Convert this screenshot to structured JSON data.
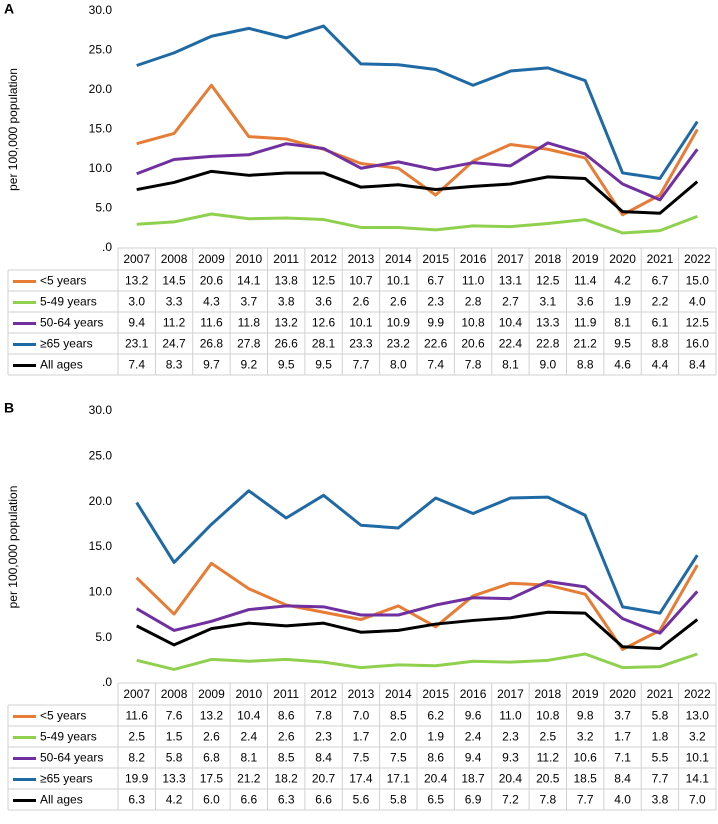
{
  "chart_data": [
    {
      "type": "line",
      "label": "A",
      "ylabel": "per 100,000 population",
      "grid": false,
      "ylim": [
        0,
        30
      ],
      "yticks": [
        {
          "value": 0,
          "label": ".0"
        },
        {
          "value": 5,
          "label": "5.0"
        },
        {
          "value": 10,
          "label": "10.0"
        },
        {
          "value": 15,
          "label": "15.0"
        },
        {
          "value": 20,
          "label": "20.0"
        },
        {
          "value": 25,
          "label": "25.0"
        },
        {
          "value": 30,
          "label": "30.0"
        }
      ],
      "categories": [
        "2007",
        "2008",
        "2009",
        "2010",
        "2011",
        "2012",
        "2013",
        "2014",
        "2015",
        "2016",
        "2017",
        "2018",
        "2019",
        "2020",
        "2021",
        "2022"
      ],
      "series": [
        {
          "name": "<5 years",
          "color": "#e67c35",
          "values": [
            13.2,
            14.5,
            20.6,
            14.1,
            13.8,
            12.5,
            10.7,
            10.1,
            6.7,
            11.0,
            13.1,
            12.5,
            11.4,
            4.2,
            6.7,
            15.0
          ],
          "value_labels": [
            "13.2",
            "14.5",
            "20.6",
            "14.1",
            "13.8",
            "12.5",
            "10.7",
            "10.1",
            "6.7",
            "11.0",
            "13.1",
            "12.5",
            "11.4",
            "4.2",
            "6.7",
            "15.0"
          ]
        },
        {
          "name": "5-49 years",
          "color": "#8fd14f",
          "values": [
            3.0,
            3.3,
            4.3,
            3.7,
            3.8,
            3.6,
            2.6,
            2.6,
            2.3,
            2.8,
            2.7,
            3.1,
            3.6,
            1.9,
            2.2,
            4.0
          ],
          "value_labels": [
            "3.0",
            "3.3",
            "4.3",
            "3.7",
            "3.8",
            "3.6",
            "2.6",
            "2.6",
            "2.3",
            "2.8",
            "2.7",
            "3.1",
            "3.6",
            "1.9",
            "2.2",
            "4.0"
          ]
        },
        {
          "name": "50-64 years",
          "color": "#7030a0",
          "values": [
            9.4,
            11.2,
            11.6,
            11.8,
            13.2,
            12.6,
            10.1,
            10.9,
            9.9,
            10.8,
            10.4,
            13.3,
            11.9,
            8.1,
            6.1,
            12.5
          ],
          "value_labels": [
            "9.4",
            "11.2",
            "11.6",
            "11.8",
            "13.2",
            "12.6",
            "10.1",
            "10.9",
            "9.9",
            "10.8",
            "10.4",
            "13.3",
            "11.9",
            "8.1",
            "6.1",
            "12.5"
          ]
        },
        {
          "name": "≥65 years",
          "color": "#1f6aa5",
          "values": [
            23.1,
            24.7,
            26.8,
            27.8,
            26.6,
            28.1,
            23.3,
            23.2,
            22.6,
            20.6,
            22.4,
            22.8,
            21.2,
            9.5,
            8.8,
            16.0
          ],
          "value_labels": [
            "23.1",
            "24.7",
            "26.8",
            "27.8",
            "26.6",
            "28.1",
            "23.3",
            "23.2",
            "22.6",
            "20.6",
            "22.4",
            "22.8",
            "21.2",
            "9.5",
            "8.8",
            "16.0"
          ]
        },
        {
          "name": "All ages",
          "color": "#000000",
          "values": [
            7.4,
            8.3,
            9.7,
            9.2,
            9.5,
            9.5,
            7.7,
            8.0,
            7.4,
            7.8,
            8.1,
            9.0,
            8.8,
            4.6,
            4.4,
            8.4
          ],
          "value_labels": [
            "7.4",
            "8.3",
            "9.7",
            "9.2",
            "9.5",
            "9.5",
            "7.7",
            "8.0",
            "7.4",
            "7.8",
            "8.1",
            "9.0",
            "8.8",
            "4.6",
            "4.4",
            "8.4"
          ]
        }
      ]
    },
    {
      "type": "line",
      "label": "B",
      "ylabel": "per 100,000 population",
      "grid": false,
      "ylim": [
        0,
        30
      ],
      "yticks": [
        {
          "value": 0,
          "label": ".0"
        },
        {
          "value": 5,
          "label": "5.0"
        },
        {
          "value": 10,
          "label": "10.0"
        },
        {
          "value": 15,
          "label": "15.0"
        },
        {
          "value": 20,
          "label": "20.0"
        },
        {
          "value": 25,
          "label": "25.0"
        },
        {
          "value": 30,
          "label": "30.0"
        }
      ],
      "categories": [
        "2007",
        "2008",
        "2009",
        "2010",
        "2011",
        "2012",
        "2013",
        "2014",
        "2015",
        "2016",
        "2017",
        "2018",
        "2019",
        "2020",
        "2021",
        "2022"
      ],
      "series": [
        {
          "name": "<5 years",
          "color": "#e67c35",
          "values": [
            11.6,
            7.6,
            13.2,
            10.4,
            8.6,
            7.8,
            7.0,
            8.5,
            6.2,
            9.6,
            11.0,
            10.8,
            9.8,
            3.7,
            5.8,
            13.0
          ],
          "value_labels": [
            "11.6",
            "7.6",
            "13.2",
            "10.4",
            "8.6",
            "7.8",
            "7.0",
            "8.5",
            "6.2",
            "9.6",
            "11.0",
            "10.8",
            "9.8",
            "3.7",
            "5.8",
            "13.0"
          ]
        },
        {
          "name": "5-49 years",
          "color": "#8fd14f",
          "values": [
            2.5,
            1.5,
            2.6,
            2.4,
            2.6,
            2.3,
            1.7,
            2.0,
            1.9,
            2.4,
            2.3,
            2.5,
            3.2,
            1.7,
            1.8,
            3.2
          ],
          "value_labels": [
            "2.5",
            "1.5",
            "2.6",
            "2.4",
            "2.6",
            "2.3",
            "1.7",
            "2.0",
            "1.9",
            "2.4",
            "2.3",
            "2.5",
            "3.2",
            "1.7",
            "1.8",
            "3.2"
          ]
        },
        {
          "name": "50-64 years",
          "color": "#7030a0",
          "values": [
            8.2,
            5.8,
            6.8,
            8.1,
            8.5,
            8.4,
            7.5,
            7.5,
            8.6,
            9.4,
            9.3,
            11.2,
            10.6,
            7.1,
            5.5,
            10.1
          ],
          "value_labels": [
            "8.2",
            "5.8",
            "6.8",
            "8.1",
            "8.5",
            "8.4",
            "7.5",
            "7.5",
            "8.6",
            "9.4",
            "9.3",
            "11.2",
            "10.6",
            "7.1",
            "5.5",
            "10.1"
          ]
        },
        {
          "name": "≥65 years",
          "color": "#1f6aa5",
          "values": [
            19.9,
            13.3,
            17.5,
            21.2,
            18.2,
            20.7,
            17.4,
            17.1,
            20.4,
            18.7,
            20.4,
            20.5,
            18.5,
            8.4,
            7.7,
            14.1
          ],
          "value_labels": [
            "19.9",
            "13.3",
            "17.5",
            "21.2",
            "18.2",
            "20.7",
            "17.4",
            "17.1",
            "20.4",
            "18.7",
            "20.4",
            "20.5",
            "18.5",
            "8.4",
            "7.7",
            "14.1"
          ]
        },
        {
          "name": "All ages",
          "color": "#000000",
          "values": [
            6.3,
            4.2,
            6.0,
            6.6,
            6.3,
            6.6,
            5.6,
            5.8,
            6.5,
            6.9,
            7.2,
            7.8,
            7.7,
            4.0,
            3.8,
            7.0
          ],
          "value_labels": [
            "6.3",
            "4.2",
            "6.0",
            "6.6",
            "6.3",
            "6.6",
            "5.6",
            "5.8",
            "6.5",
            "6.9",
            "7.2",
            "7.8",
            "7.7",
            "4.0",
            "3.8",
            "7.0"
          ]
        }
      ]
    }
  ]
}
